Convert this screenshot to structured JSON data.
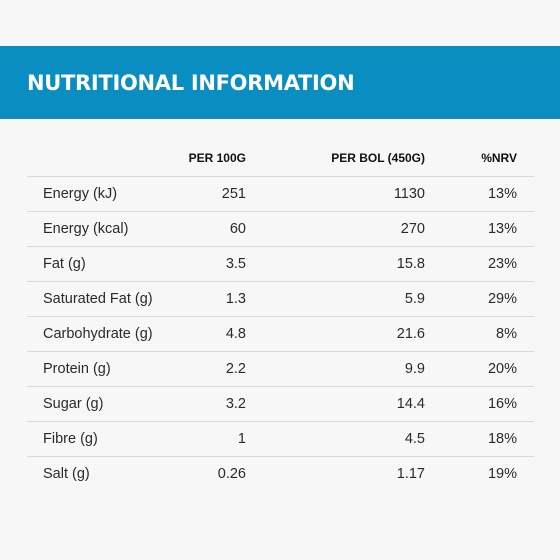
{
  "header": {
    "title": "NUTRITIONAL INFORMATION"
  },
  "colors": {
    "banner": "#0a8dc0",
    "background": "#f7f7f8",
    "divider": "#d9d9d9"
  },
  "table": {
    "columns": [
      "",
      "PER 100G",
      "PER BOL (450G)",
      "%NRV"
    ],
    "rows": [
      {
        "name": "Energy (kJ)",
        "per100": "251",
        "perbol": "1130",
        "nrv": "13%"
      },
      {
        "name": "Energy (kcal)",
        "per100": "60",
        "perbol": "270",
        "nrv": "13%"
      },
      {
        "name": "Fat (g)",
        "per100": "3.5",
        "perbol": "15.8",
        "nrv": "23%"
      },
      {
        "name": "Saturated Fat (g)",
        "per100": "1.3",
        "perbol": "5.9",
        "nrv": "29%"
      },
      {
        "name": "Carbohydrate (g)",
        "per100": "4.8",
        "perbol": "21.6",
        "nrv": "8%"
      },
      {
        "name": "Protein (g)",
        "per100": "2.2",
        "perbol": "9.9",
        "nrv": "20%"
      },
      {
        "name": "Sugar (g)",
        "per100": "3.2",
        "perbol": "14.4",
        "nrv": "16%"
      },
      {
        "name": "Fibre (g)",
        "per100": "1",
        "perbol": "4.5",
        "nrv": "18%"
      },
      {
        "name": "Salt (g)",
        "per100": "0.26",
        "perbol": "1.17",
        "nrv": "19%"
      }
    ]
  }
}
